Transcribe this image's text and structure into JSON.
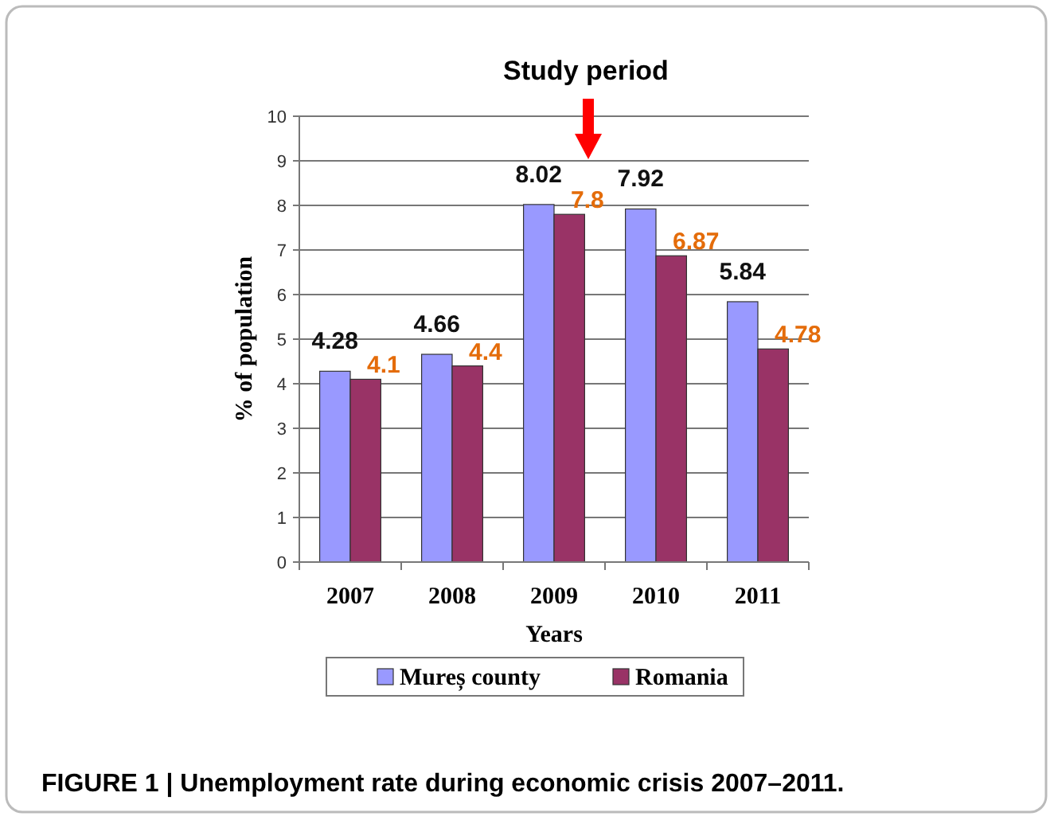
{
  "chart_data": {
    "type": "bar",
    "xlabel": "Years",
    "ylabel": "% of population",
    "annotations": [
      "Study period",
      "FIGURE 1 | Unemployment rate during economic crisis 2007–2011."
    ],
    "categories": [
      "2007",
      "2008",
      "2009",
      "2010",
      "2011"
    ],
    "series": [
      {
        "name": "Mureș county",
        "color": "#9999ff",
        "values": [
          4.28,
          4.66,
          8.02,
          7.92,
          5.84
        ]
      },
      {
        "name": "Romania",
        "color": "#993366",
        "values": [
          4.1,
          4.4,
          7.8,
          6.87,
          4.78
        ]
      }
    ],
    "ylim": [
      0,
      10
    ],
    "yticks": [
      0,
      1,
      2,
      3,
      4,
      5,
      6,
      7,
      8,
      9,
      10
    ],
    "grid": "y",
    "legend": "bottom",
    "data_labels": true
  }
}
